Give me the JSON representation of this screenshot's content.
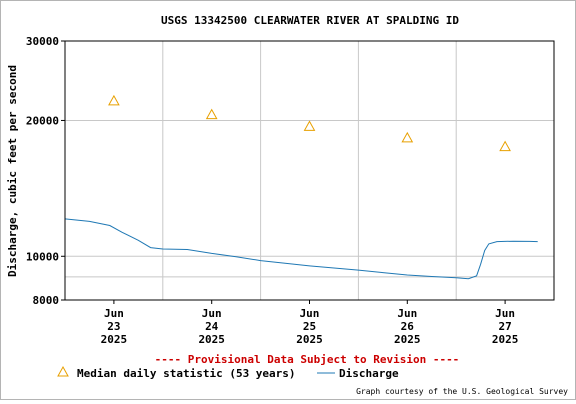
{
  "chart_data": {
    "type": "line",
    "title": "USGS 13342500 CLEARWATER RIVER AT SPALDING ID",
    "ylabel": "Discharge, cubic feet per second",
    "yscale": "log",
    "ylim": [
      8000,
      30000
    ],
    "y_ticks": [
      {
        "value": 8000,
        "label": "8000"
      },
      {
        "value": 10000,
        "label": "10000"
      },
      {
        "value": 20000,
        "label": "20000"
      },
      {
        "value": 30000,
        "label": "30000"
      }
    ],
    "xlim": [
      "2025-06-22T12:00",
      "2025-06-27T12:00"
    ],
    "x_ticks": [
      {
        "value": "2025-06-23",
        "label": [
          "Jun",
          "23",
          "2025"
        ]
      },
      {
        "value": "2025-06-24",
        "label": [
          "Jun",
          "24",
          "2025"
        ]
      },
      {
        "value": "2025-06-25",
        "label": [
          "Jun",
          "25",
          "2025"
        ]
      },
      {
        "value": "2025-06-26",
        "label": [
          "Jun",
          "26",
          "2025"
        ]
      },
      {
        "value": "2025-06-27",
        "label": [
          "Jun",
          "27",
          "2025"
        ]
      }
    ],
    "grid": true,
    "series": [
      {
        "name": "Median daily statistic (53 years)",
        "kind": "marker",
        "marker": "triangle",
        "color": "#e8a000",
        "points": [
          {
            "x": "2025-06-23T00:00",
            "y": 22100
          },
          {
            "x": "2025-06-24T00:00",
            "y": 20600
          },
          {
            "x": "2025-06-25T00:00",
            "y": 19400
          },
          {
            "x": "2025-06-26T00:00",
            "y": 18300
          },
          {
            "x": "2025-06-27T00:00",
            "y": 17500
          }
        ]
      },
      {
        "name": "Discharge",
        "kind": "line",
        "color": "#1f78b4",
        "points": [
          {
            "x": "2025-06-22T12:00",
            "y": 12100
          },
          {
            "x": "2025-06-22T18:00",
            "y": 11950
          },
          {
            "x": "2025-06-22T23:00",
            "y": 11700
          },
          {
            "x": "2025-06-23T02:00",
            "y": 11300
          },
          {
            "x": "2025-06-23T06:00",
            "y": 10850
          },
          {
            "x": "2025-06-23T09:00",
            "y": 10450
          },
          {
            "x": "2025-06-23T12:00",
            "y": 10380
          },
          {
            "x": "2025-06-23T18:00",
            "y": 10350
          },
          {
            "x": "2025-06-24T00:00",
            "y": 10150
          },
          {
            "x": "2025-06-24T06:00",
            "y": 9980
          },
          {
            "x": "2025-06-24T12:00",
            "y": 9780
          },
          {
            "x": "2025-06-24T18:00",
            "y": 9650
          },
          {
            "x": "2025-06-25T00:00",
            "y": 9520
          },
          {
            "x": "2025-06-25T06:00",
            "y": 9420
          },
          {
            "x": "2025-06-25T12:00",
            "y": 9320
          },
          {
            "x": "2025-06-25T18:00",
            "y": 9200
          },
          {
            "x": "2025-06-26T00:00",
            "y": 9090
          },
          {
            "x": "2025-06-26T06:00",
            "y": 9020
          },
          {
            "x": "2025-06-26T12:00",
            "y": 8960
          },
          {
            "x": "2025-06-26T15:00",
            "y": 8920
          },
          {
            "x": "2025-06-26T17:00",
            "y": 9050
          },
          {
            "x": "2025-06-26T18:00",
            "y": 9600
          },
          {
            "x": "2025-06-26T19:00",
            "y": 10300
          },
          {
            "x": "2025-06-26T20:00",
            "y": 10650
          },
          {
            "x": "2025-06-26T22:00",
            "y": 10780
          },
          {
            "x": "2025-06-27T02:00",
            "y": 10800
          },
          {
            "x": "2025-06-27T06:00",
            "y": 10790
          },
          {
            "x": "2025-06-27T08:00",
            "y": 10780
          }
        ]
      }
    ],
    "annotations": [
      "---- Provisional Data Subject to Revision ----"
    ],
    "legend": {
      "position": "bottom-left"
    },
    "credit": "Graph courtesy of the U.S. Geological Survey"
  },
  "colors": {
    "grid": "#c8c8c8",
    "frame": "#000000",
    "provisional": "#cc0000",
    "median": "#e8a000",
    "discharge": "#1f78b4"
  }
}
